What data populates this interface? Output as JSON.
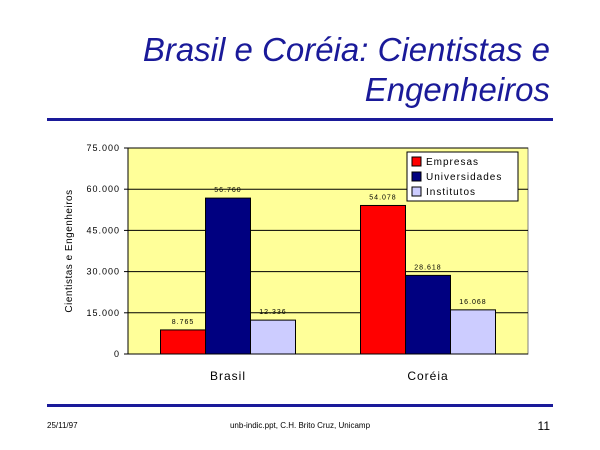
{
  "slide": {
    "title_line1": "Brasil e Coréia: Cientistas e",
    "title_line2": "Engenheiros",
    "footer_date": "25/11/97",
    "footer_source": "unb-indic.ppt, C.H. Brito Cruz, Unicamp",
    "page_number": "11"
  },
  "colors": {
    "title": "#1a1a99",
    "plot_background": "#ffff99",
    "Empresas": "#ff0000",
    "Universidades": "#000080",
    "Institutos": "#ccccff"
  },
  "chart_data": {
    "type": "bar",
    "categories": [
      "Brasil",
      "Coréia"
    ],
    "series": [
      {
        "name": "Empresas",
        "values": [
          8765,
          54078
        ],
        "labels": [
          "8.765",
          "54.078"
        ]
      },
      {
        "name": "Universidades",
        "values": [
          56760,
          28618
        ],
        "labels": [
          "56.760",
          "28.618"
        ]
      },
      {
        "name": "Institutos",
        "values": [
          12336,
          16068
        ],
        "labels": [
          "12.336",
          "16.068"
        ]
      }
    ],
    "ylabel": "Cientistas e Engenheiros",
    "ylim": [
      0,
      75000
    ],
    "yticks": [
      0,
      15000,
      30000,
      45000,
      60000,
      75000
    ],
    "ytick_labels": [
      "0",
      "15.000",
      "30.000",
      "45.000",
      "60.000",
      "75.000"
    ],
    "grid": true,
    "legend_position": "top-right"
  }
}
